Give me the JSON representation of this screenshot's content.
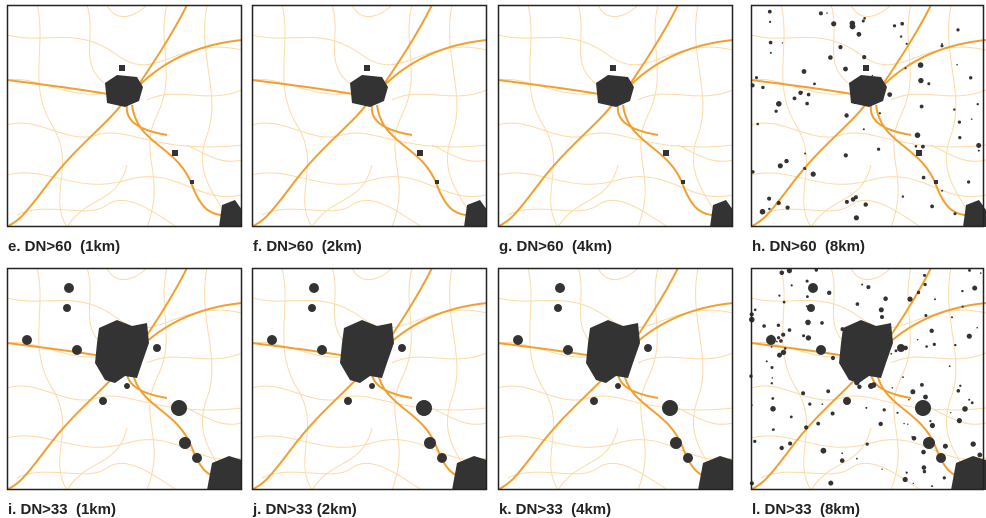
{
  "panels": [
    {
      "caption": "e. DN>60  (1km)"
    },
    {
      "caption": "f. DN>60  (2km)"
    },
    {
      "caption": "g. DN>60  (4km)"
    },
    {
      "caption": "h. DN>60  (8km)"
    },
    {
      "caption": "i. DN>33  (1km)"
    },
    {
      "caption": "j. DN>33 (2km)"
    },
    {
      "caption": "k. DN>33  (4km)"
    },
    {
      "caption": "l. DN>33  (8km)"
    }
  ]
}
